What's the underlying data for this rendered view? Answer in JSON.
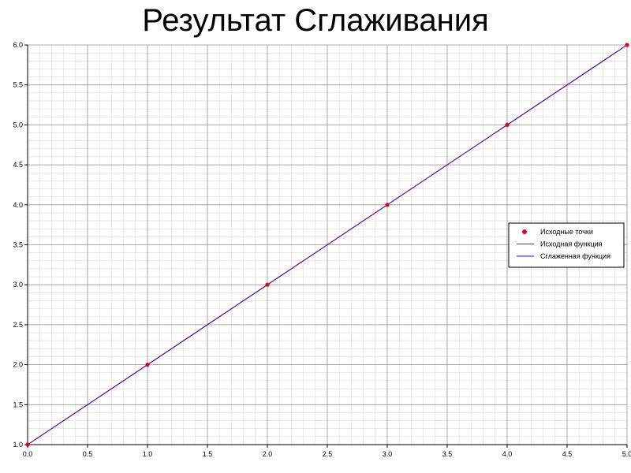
{
  "chart_data": {
    "type": "line",
    "title": "Результат Сглаживания",
    "xlabel": "",
    "ylabel": "",
    "xlim": [
      0.0,
      5.0
    ],
    "ylim": [
      1.0,
      6.0
    ],
    "x_ticks": [
      "0.0",
      "0.5",
      "1.0",
      "1.5",
      "2.0",
      "2.5",
      "3.0",
      "3.5",
      "4.0",
      "4.5",
      "5.0"
    ],
    "y_ticks": [
      "1.0",
      "1.5",
      "2.0",
      "2.5",
      "3.0",
      "3.5",
      "4.0",
      "4.5",
      "5.0",
      "5.5",
      "6.0"
    ],
    "grid": true,
    "legend_position": "right",
    "series": [
      {
        "name": "Исходные точки",
        "kind": "points",
        "color": "#e0001a",
        "x": [
          0,
          1,
          2,
          3,
          4,
          5
        ],
        "y": [
          1,
          2,
          3,
          4,
          5,
          6
        ]
      },
      {
        "name": "Исходная функция",
        "kind": "line",
        "color": "#e0001a",
        "x": [
          0,
          5
        ],
        "y": [
          1,
          6
        ]
      },
      {
        "name": "Сглаженная функция",
        "kind": "line",
        "color": "#2a00e0",
        "x": [
          0,
          5
        ],
        "y": [
          1,
          6
        ]
      }
    ]
  }
}
